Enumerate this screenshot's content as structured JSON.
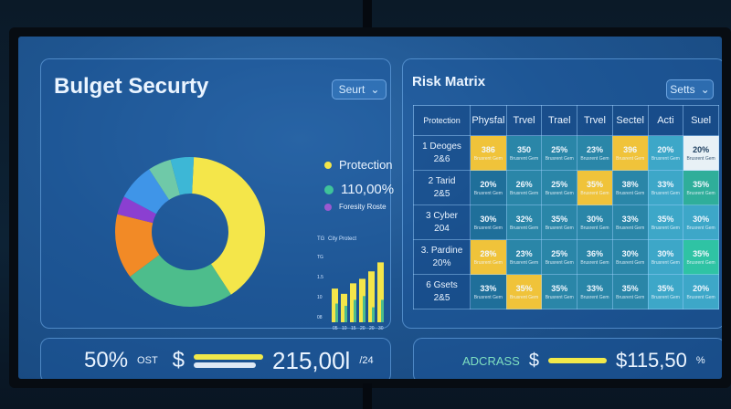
{
  "left_panel": {
    "title": "Bulget Securty",
    "select_label": "Seurt",
    "legend": [
      {
        "label": "Protection",
        "color": "#f4e64a"
      },
      {
        "label": "110,00%",
        "color": "#3fc39a"
      },
      {
        "label": "Foresity Roste",
        "color": "#9b59d0"
      }
    ],
    "donut": {
      "slices": [
        {
          "value": 40,
          "color": "#f4e64a"
        },
        {
          "value": 24,
          "color": "#4dbd8c"
        },
        {
          "value": 14,
          "color": "#f28a26"
        },
        {
          "value": 4,
          "color": "#8b3fd1"
        },
        {
          "value": 8,
          "color": "#3f95e8"
        },
        {
          "value": 5,
          "color": "#6fc9a8"
        },
        {
          "value": 5,
          "color": "#3db7d6"
        }
      ]
    },
    "bar_chart": {
      "label_top": "TG",
      "label_mid": "City Protect",
      "y_ticks": [
        "TG",
        "1.5",
        "10",
        "08"
      ],
      "x_ticks": [
        "05",
        "10",
        "15",
        "20",
        "20",
        "30",
        "35"
      ],
      "values": [
        45,
        38,
        52,
        58,
        68,
        80,
        92
      ],
      "baselines": [
        25,
        22,
        30,
        35,
        20,
        30,
        40
      ]
    },
    "summary": {
      "percent": "50%",
      "percent_suffix": "OST",
      "currency_symbol": "$",
      "amount": "215,00l",
      "amount_suffix": "/24"
    }
  },
  "right_panel": {
    "title": "Risk Matrix",
    "select_label": "Setts",
    "headers": [
      "Protection",
      "Physfal",
      "Trvel",
      "Trael",
      "Trvel",
      "Sectel",
      "Acti",
      "Suel"
    ],
    "rows": [
      {
        "label_a": "1  Deoges",
        "label_b": "2&6",
        "cells": [
          {
            "v": "386",
            "c": "#f0c33a"
          },
          {
            "v": "350",
            "c": "#2a86a8"
          },
          {
            "v": "25%",
            "c": "#2a86a8"
          },
          {
            "v": "23%",
            "c": "#2a86a8"
          },
          {
            "v": "396",
            "c": "#f0c33a"
          },
          {
            "v": "20%",
            "c": "#3da7c8"
          },
          {
            "v": "20%",
            "c": "#e8f1f6"
          }
        ]
      },
      {
        "label_a": "2  Tarid",
        "label_b": "2&5",
        "cells": [
          {
            "v": "20%",
            "c": "#1f6f9a"
          },
          {
            "v": "26%",
            "c": "#2a86a8"
          },
          {
            "v": "25%",
            "c": "#2a86a8"
          },
          {
            "v": "35%",
            "c": "#f0c33a"
          },
          {
            "v": "38%",
            "c": "#2a86a8"
          },
          {
            "v": "33%",
            "c": "#3da7c8"
          },
          {
            "v": "35%",
            "c": "#2fae9a"
          }
        ]
      },
      {
        "label_a": "3  Cyber",
        "label_b": "204",
        "cells": [
          {
            "v": "30%",
            "c": "#1f6f9a"
          },
          {
            "v": "32%",
            "c": "#2a86a8"
          },
          {
            "v": "35%",
            "c": "#2a86a8"
          },
          {
            "v": "30%",
            "c": "#2a86a8"
          },
          {
            "v": "33%",
            "c": "#2a86a8"
          },
          {
            "v": "35%",
            "c": "#3da7c8"
          },
          {
            "v": "30%",
            "c": "#3da7c8"
          }
        ]
      },
      {
        "label_a": "3.  Pardine",
        "label_b": "20%",
        "cells": [
          {
            "v": "28%",
            "c": "#f0c33a"
          },
          {
            "v": "23%",
            "c": "#2a86a8"
          },
          {
            "v": "25%",
            "c": "#2a86a8"
          },
          {
            "v": "36%",
            "c": "#2a86a8"
          },
          {
            "v": "30%",
            "c": "#2a86a8"
          },
          {
            "v": "30%",
            "c": "#3da7c8"
          },
          {
            "v": "35%",
            "c": "#2fc3a4"
          }
        ]
      },
      {
        "label_a": "6  Gsets",
        "label_b": "2&5",
        "cells": [
          {
            "v": "33%",
            "c": "#1f6f9a"
          },
          {
            "v": "35%",
            "c": "#f0c33a"
          },
          {
            "v": "35%",
            "c": "#2a86a8"
          },
          {
            "v": "33%",
            "c": "#2a86a8"
          },
          {
            "v": "35%",
            "c": "#2a86a8"
          },
          {
            "v": "35%",
            "c": "#3da7c8"
          },
          {
            "v": "20%",
            "c": "#3da7c8"
          }
        ]
      }
    ],
    "summary": {
      "label": "ADCRASS",
      "currency_symbol": "$",
      "amount": "$115,50",
      "amount_suffix": "%"
    }
  },
  "cell_sublabel": "Brusrent Gem"
}
